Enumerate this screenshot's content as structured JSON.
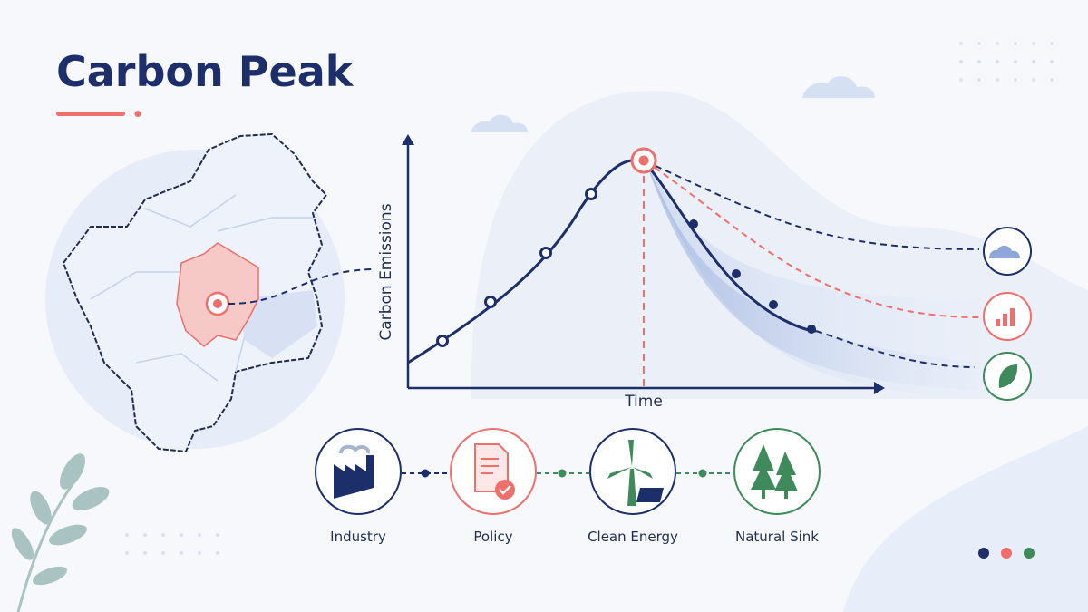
{
  "header": {
    "title": "Carbon Peak"
  },
  "chart": {
    "y_label": "Carbon Emissions",
    "x_label": "Time"
  },
  "drivers": [
    {
      "label": "Industry"
    },
    {
      "label": "Policy"
    },
    {
      "label": "Clean Energy"
    },
    {
      "label": "Natural Sink"
    }
  ]
}
